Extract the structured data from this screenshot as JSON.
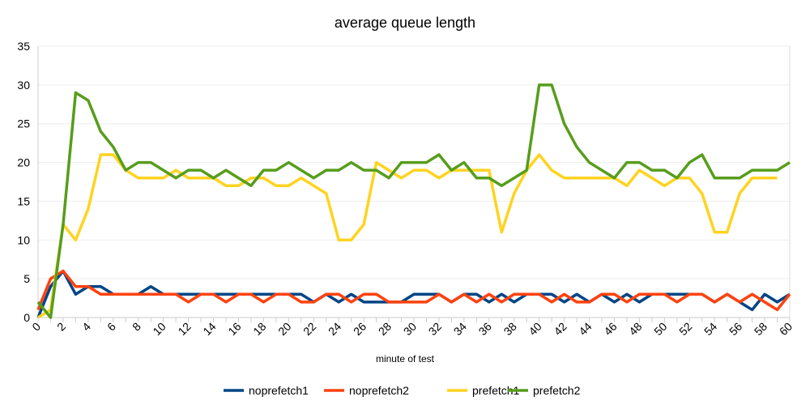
{
  "chart_data": {
    "type": "line",
    "title": "average queue length",
    "xlabel": "minute of test",
    "ylabel": "",
    "ylim": [
      0,
      35
    ],
    "xlim": [
      0,
      60
    ],
    "yticks": [
      0,
      5,
      10,
      15,
      20,
      25,
      30,
      35
    ],
    "xticks": [
      0,
      2,
      4,
      6,
      8,
      10,
      12,
      14,
      16,
      18,
      20,
      22,
      24,
      26,
      28,
      30,
      32,
      34,
      36,
      38,
      40,
      42,
      44,
      46,
      48,
      50,
      52,
      54,
      56,
      58,
      60
    ],
    "grid": true,
    "legend_position": "bottom",
    "series": [
      {
        "name": "noprefetch1",
        "color": "#004586",
        "values": [
          0,
          4,
          6,
          3,
          4,
          4,
          3,
          3,
          3,
          4,
          3,
          3,
          3,
          3,
          3,
          3,
          3,
          3,
          3,
          3,
          3,
          3,
          2,
          3,
          2,
          3,
          2,
          2,
          2,
          2,
          3,
          3,
          3,
          2,
          3,
          3,
          2,
          3,
          2,
          3,
          3,
          3,
          2,
          3,
          2,
          3,
          2,
          3,
          2,
          3,
          3,
          3,
          3,
          3,
          2,
          3,
          2,
          1,
          3,
          2,
          3
        ]
      },
      {
        "name": "noprefetch2",
        "color": "#ff420e",
        "values": [
          1,
          5,
          6,
          4,
          4,
          3,
          3,
          3,
          3,
          3,
          3,
          3,
          2,
          3,
          3,
          2,
          3,
          3,
          2,
          3,
          3,
          2,
          2,
          3,
          3,
          2,
          3,
          3,
          2,
          2,
          2,
          2,
          3,
          2,
          3,
          2,
          3,
          2,
          3,
          3,
          3,
          2,
          3,
          2,
          2,
          3,
          3,
          2,
          3,
          3,
          3,
          2,
          3,
          3,
          2,
          3,
          2,
          3,
          2,
          1,
          3
        ]
      },
      {
        "name": "prefetch1",
        "color": "#ffd320",
        "values": [
          0,
          1,
          12,
          10,
          14,
          21,
          21,
          19,
          18,
          18,
          18,
          19,
          18,
          18,
          18,
          17,
          17,
          18,
          18,
          17,
          17,
          18,
          17,
          16,
          10,
          10,
          12,
          20,
          19,
          18,
          19,
          19,
          18,
          19,
          19,
          19,
          19,
          11,
          16,
          19,
          21,
          19,
          18,
          18,
          18,
          18,
          18,
          17,
          19,
          18,
          17,
          18,
          18,
          16,
          11,
          11,
          16,
          18,
          18,
          18,
          null
        ]
      },
      {
        "name": "prefetch2",
        "color": "#579d1c",
        "values": [
          2,
          0,
          12,
          29,
          28,
          24,
          22,
          19,
          20,
          20,
          19,
          18,
          19,
          19,
          18,
          19,
          18,
          17,
          19,
          19,
          20,
          19,
          18,
          19,
          19,
          20,
          19,
          19,
          18,
          20,
          20,
          20,
          21,
          19,
          20,
          18,
          18,
          17,
          18,
          19,
          30,
          30,
          25,
          22,
          20,
          19,
          18,
          20,
          20,
          19,
          19,
          18,
          20,
          21,
          18,
          18,
          18,
          19,
          19,
          19,
          20
        ]
      }
    ]
  }
}
